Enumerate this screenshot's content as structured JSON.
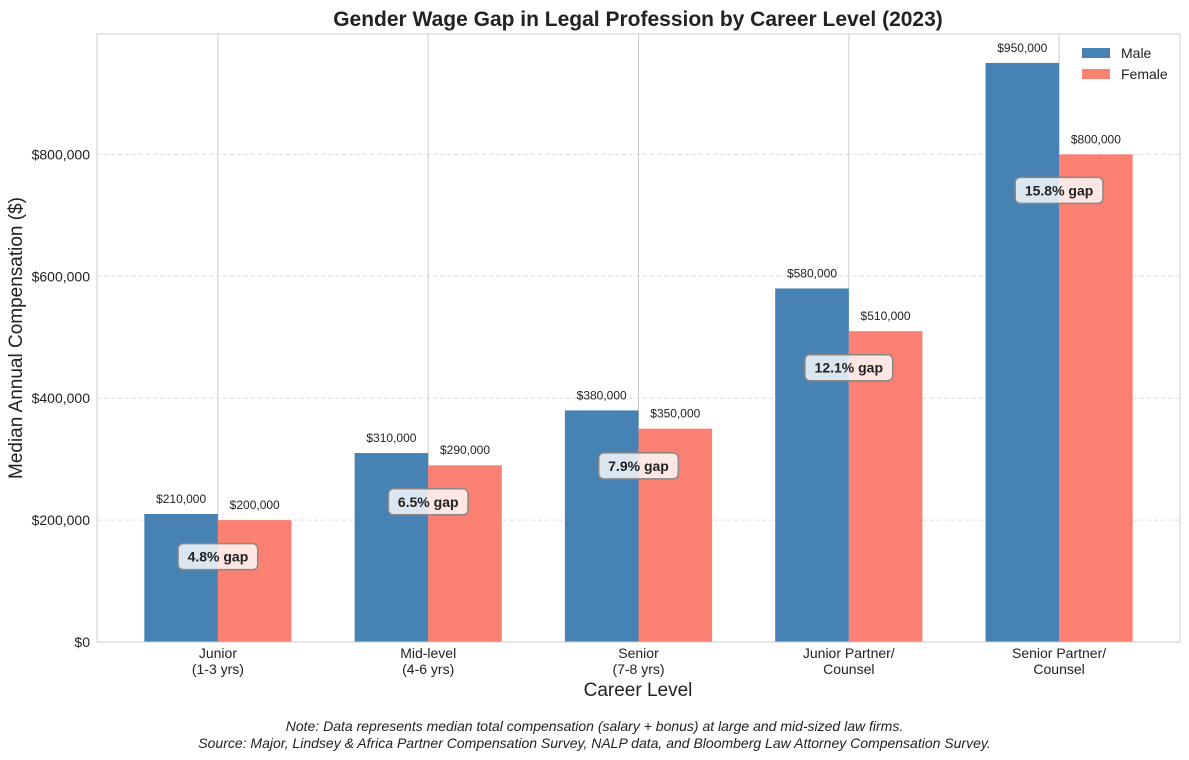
{
  "chart_data": {
    "type": "bar",
    "title": "Gender Wage Gap in Legal Profession by Career Level (2023)",
    "xlabel": "Career Level",
    "ylabel": "Median Annual Compensation ($)",
    "categories": [
      "Junior\n(1-3 yrs)",
      "Mid-level\n(4-6 yrs)",
      "Senior\n(7-8 yrs)",
      "Junior Partner/\nCounsel",
      "Senior Partner/\nCounsel"
    ],
    "series": [
      {
        "name": "Male",
        "color": "#4682b4",
        "values": [
          210000,
          310000,
          380000,
          580000,
          950000
        ],
        "labels": [
          "$210,000",
          "$310,000",
          "$380,000",
          "$580,000",
          "$950,000"
        ]
      },
      {
        "name": "Female",
        "color": "#fa8072",
        "values": [
          200000,
          290000,
          350000,
          510000,
          800000
        ],
        "labels": [
          "$200,000",
          "$290,000",
          "$350,000",
          "$510,000",
          "$800,000"
        ]
      }
    ],
    "annotations": [
      {
        "text": "4.8% gap",
        "x": 0,
        "y": 140000
      },
      {
        "text": "6.5% gap",
        "x": 1,
        "y": 230000
      },
      {
        "text": "7.9% gap",
        "x": 2,
        "y": 289000
      },
      {
        "text": "12.1% gap",
        "x": 3,
        "y": 450000
      },
      {
        "text": "15.8% gap",
        "x": 4,
        "y": 741000
      }
    ],
    "ylim": [
      0,
      997500
    ],
    "yticks": [
      0,
      200000,
      400000,
      600000,
      800000
    ],
    "ytick_labels": [
      "$0",
      "$200,000",
      "$400,000",
      "$600,000",
      "$800,000"
    ],
    "grid": true,
    "legend_position": "top-right"
  },
  "notes": {
    "line1": "Note: Data represents median total compensation (salary + bonus) at large and mid-sized law firms.",
    "line2": "Source: Major, Lindsey & Africa Partner Compensation Survey, NALP data, and Bloomberg Law Attorney Compensation Survey."
  }
}
